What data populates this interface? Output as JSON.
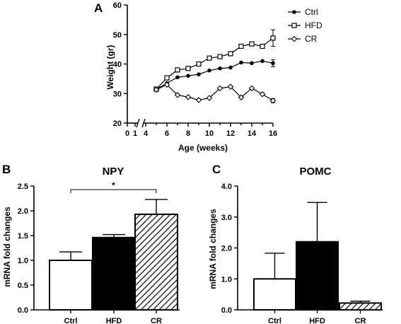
{
  "chart_data": [
    {
      "panel": "A",
      "type": "line",
      "xlabel": "Age (weeks)",
      "ylabel": "Weight (gr)",
      "ylim": [
        20,
        60
      ],
      "yticks": [
        "20",
        "30",
        "40",
        "50",
        "60"
      ],
      "xticks": [
        "0",
        "1",
        "4",
        "6",
        "8",
        "10",
        "12",
        "14",
        "16"
      ],
      "x": [
        5,
        6,
        7,
        8,
        9,
        10,
        11,
        12,
        13,
        14,
        15,
        16
      ],
      "legend": "top-right",
      "series": [
        {
          "name": "Ctrl",
          "marker": "dot",
          "values": [
            31.5,
            33.5,
            35.5,
            36.0,
            36.5,
            37.8,
            38.5,
            38.8,
            40.5,
            40.3,
            41.0,
            40.3
          ],
          "err": [
            0,
            0,
            0,
            0,
            0,
            0,
            0,
            0,
            0,
            0,
            0,
            1.2
          ]
        },
        {
          "name": "HFD",
          "marker": "square",
          "values": [
            31.5,
            35.3,
            38.0,
            38.5,
            40.0,
            42.0,
            42.5,
            43.5,
            46.0,
            46.8,
            46.0,
            48.8
          ],
          "err": [
            0,
            0,
            0,
            0,
            0,
            0,
            0,
            0,
            0,
            0,
            0,
            2.8
          ]
        },
        {
          "name": "CR",
          "marker": "diamond",
          "values": [
            31.3,
            33.0,
            29.5,
            28.8,
            27.8,
            28.5,
            31.8,
            32.3,
            28.7,
            31.8,
            29.8,
            27.6
          ],
          "err": [
            0,
            0,
            0,
            0,
            0,
            0,
            0,
            0,
            0,
            0,
            0,
            0.7
          ]
        }
      ]
    },
    {
      "panel": "B",
      "type": "bar",
      "title": "NPY",
      "ylabel": "mRNA fold changes",
      "ylim": [
        0,
        2.5
      ],
      "yticks": [
        "0.0",
        "0.5",
        "1.0",
        "1.5",
        "2.0",
        "2.5"
      ],
      "categories": [
        "Ctrl",
        "HFD",
        "CR"
      ],
      "values": [
        1.0,
        1.46,
        1.93
      ],
      "err": [
        0.17,
        0.06,
        0.3
      ],
      "significance": {
        "from": "Ctrl",
        "to": "CR",
        "label": "*"
      }
    },
    {
      "panel": "C",
      "type": "bar",
      "title": "POMC",
      "ylabel": "mRNA fold changes",
      "ylim": [
        0,
        4.0
      ],
      "yticks": [
        "0.0",
        "1.0",
        "2.0",
        "3.0",
        "4.0"
      ],
      "categories": [
        "Ctrl",
        "HFD",
        "CR"
      ],
      "values": [
        1.0,
        2.2,
        0.22
      ],
      "err": [
        0.83,
        1.27,
        0.06
      ]
    }
  ],
  "bar_fills": [
    "white",
    "black",
    "hatch"
  ]
}
